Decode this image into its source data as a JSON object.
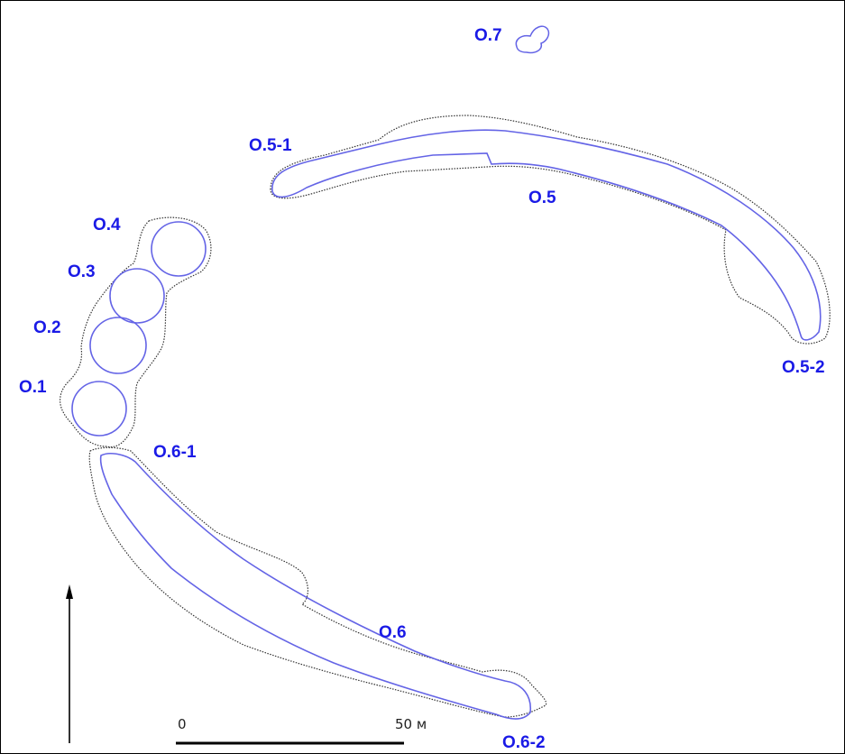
{
  "colors": {
    "label": "#1a1ae6",
    "inner_contour": "#6464e6",
    "outer_contour": "#333333"
  },
  "labels": {
    "o1": "O.1",
    "o2": "O.2",
    "o3": "O.3",
    "o4": "O.4",
    "o5": "O.5",
    "o5_1": "O.5-1",
    "o5_2": "O.5-2",
    "o6": "O.6",
    "o6_1": "O.6-1",
    "o6_2": "O.6-2",
    "o7": "O.7"
  },
  "scale_bar": {
    "start_label": "0",
    "end_label": "50 м"
  },
  "north_arrow": {
    "icon": "north-arrow-icon"
  }
}
